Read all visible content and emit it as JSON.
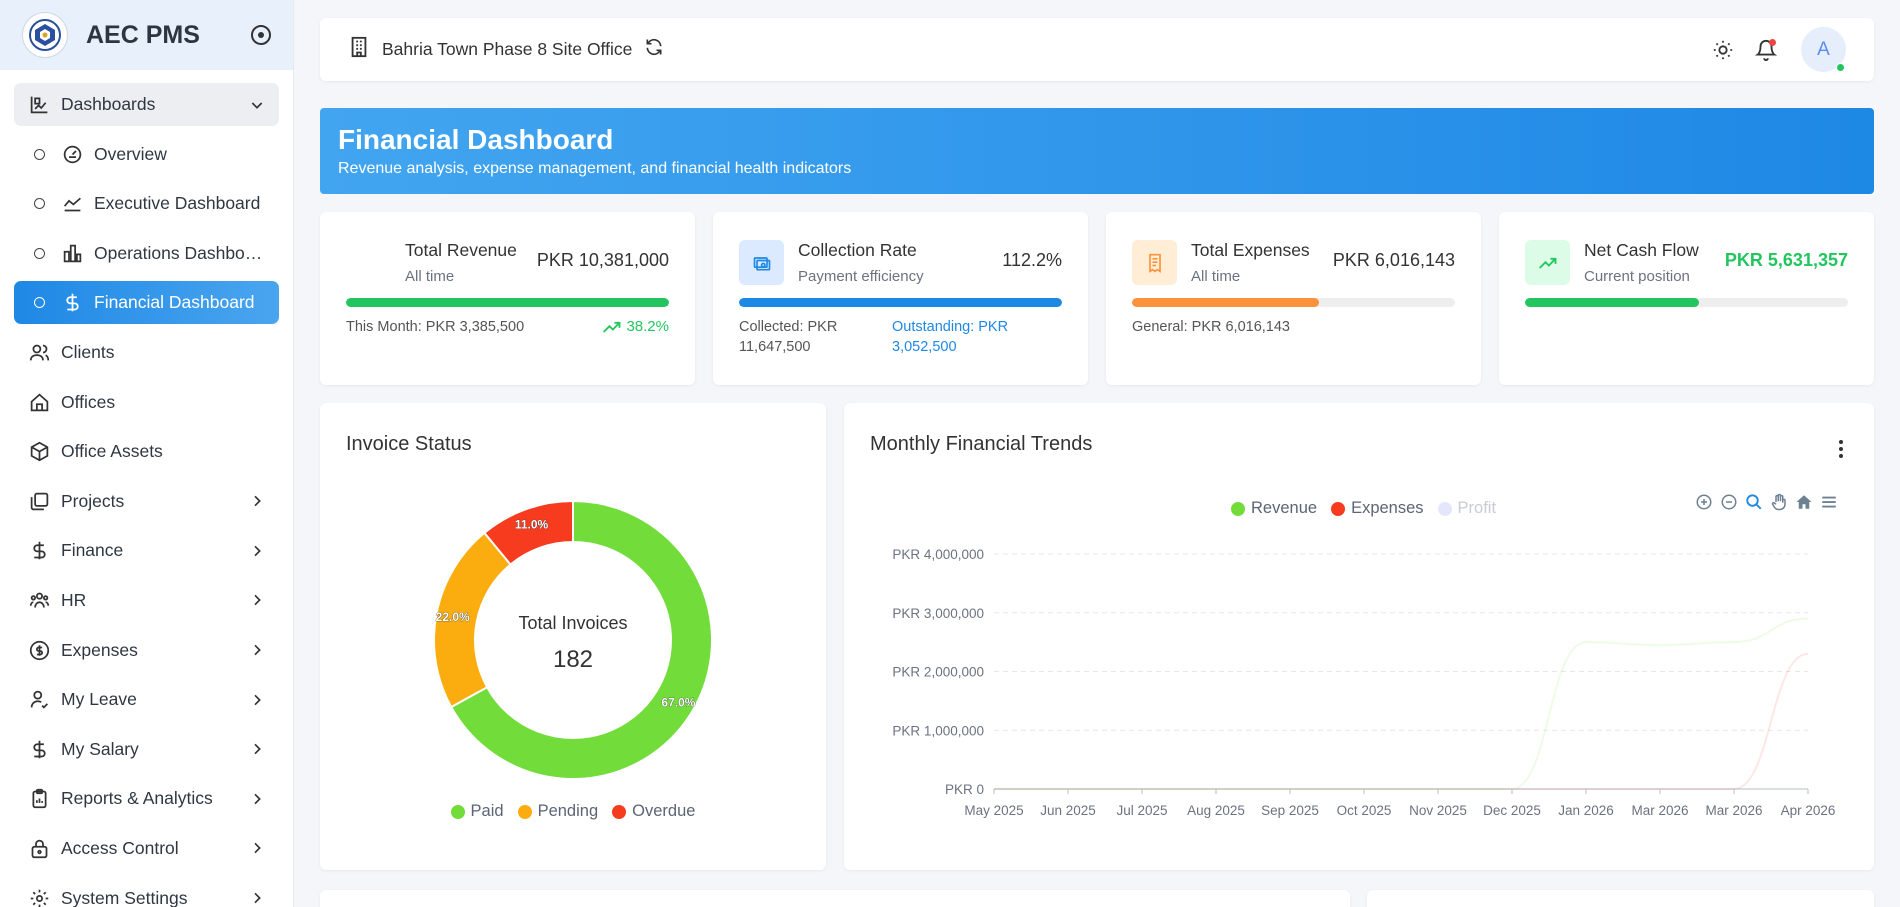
{
  "brand": {
    "name": "AEC PMS"
  },
  "sidebar": {
    "dashboards": {
      "label": "Dashboards"
    },
    "sub_items": [
      {
        "label": "Overview",
        "icon": "gauge-icon"
      },
      {
        "label": "Executive Dashboard",
        "icon": "line-chart-icon"
      },
      {
        "label": "Operations Dashboa...",
        "icon": "bar-chart-icon"
      },
      {
        "label": "Financial Dashboard",
        "icon": "dollar-icon",
        "active": true
      }
    ],
    "items": [
      {
        "label": "Clients",
        "icon": "users-icon"
      },
      {
        "label": "Offices",
        "icon": "home-icon"
      },
      {
        "label": "Office Assets",
        "icon": "box-icon"
      },
      {
        "label": "Projects",
        "icon": "folders-icon"
      },
      {
        "label": "Finance",
        "icon": "dollar-icon"
      },
      {
        "label": "HR",
        "icon": "team-icon"
      },
      {
        "label": "Expenses",
        "icon": "coin-icon"
      },
      {
        "label": "My Leave",
        "icon": "user-check-icon"
      },
      {
        "label": "My Salary",
        "icon": "dollar-icon"
      },
      {
        "label": "Reports & Analytics",
        "icon": "clipboard-icon"
      },
      {
        "label": "Access Control",
        "icon": "lock-icon"
      },
      {
        "label": "System Settings",
        "icon": "gear-icon"
      }
    ]
  },
  "topbar": {
    "office": "Bahria Town Phase 8 Site Office",
    "avatar_initial": "A"
  },
  "banner": {
    "title": "Financial Dashboard",
    "subtitle": "Revenue analysis, expense management, and financial health indicators"
  },
  "stats": {
    "revenue": {
      "title": "Total Revenue",
      "sub": "All time",
      "value": "PKR 10,381,000",
      "progress": 1.0,
      "foot_left": "This Month: PKR 3,385,500",
      "foot_right": "38.2%",
      "color": "#22c55e"
    },
    "collection": {
      "title": "Collection Rate",
      "sub": "Payment efficiency",
      "value": "112.2%",
      "progress": 1.0,
      "foot_left": "Collected: PKR 11,647,500",
      "foot_right": "Outstanding: PKR 3,052,500",
      "color": "#1e88e5"
    },
    "expenses": {
      "title": "Total Expenses",
      "sub": "All time",
      "value": "PKR 6,016,143",
      "progress": 0.58,
      "foot_left": "General: PKR 6,016,143",
      "color": "#fb923c"
    },
    "cashflow": {
      "title": "Net Cash Flow",
      "sub": "Current position",
      "value": "PKR 5,631,357",
      "progress": 0.54,
      "color": "#22c55e"
    }
  },
  "invoice": {
    "title": "Invoice Status",
    "center_label": "Total Invoices",
    "center_value": "182",
    "legend": [
      "Paid",
      "Pending",
      "Overdue"
    ]
  },
  "trends": {
    "title": "Monthly Financial Trends",
    "legend": [
      "Revenue",
      "Expenses",
      "Profit"
    ]
  },
  "chart_data": [
    {
      "type": "pie",
      "title": "Invoice Status",
      "categories": [
        "Paid",
        "Pending",
        "Overdue"
      ],
      "values": [
        67.0,
        22.0,
        11.0
      ],
      "labels": [
        "67.0%",
        "22.0%",
        "11.0%"
      ],
      "colors": [
        "#72dc3b",
        "#fbad0f",
        "#f63b1f"
      ],
      "legend": "bottom"
    },
    {
      "type": "line",
      "title": "Monthly Financial Trends",
      "x": [
        "May 2025",
        "Jun 2025",
        "Jul 2025",
        "Aug 2025",
        "Sep 2025",
        "Oct 2025",
        "Nov 2025",
        "Dec 2025",
        "Jan 2026",
        "Mar 2026",
        "Mar 2026",
        "Apr 2026"
      ],
      "y_ticks": [
        "PKR 0",
        "PKR 1,000,000",
        "PKR 2,000,000",
        "PKR 3,000,000",
        "PKR 4,000,000"
      ],
      "ylim": [
        0,
        4000000
      ],
      "series": [
        {
          "name": "Revenue",
          "color": "#72dc3b",
          "values": [
            0,
            0,
            0,
            0,
            0,
            0,
            0,
            0,
            2500000,
            2450000,
            2500000,
            2900000
          ]
        },
        {
          "name": "Expenses",
          "color": "#f63b1f",
          "values": [
            0,
            0,
            0,
            0,
            0,
            0,
            0,
            0,
            0,
            0,
            0,
            2300000
          ]
        },
        {
          "name": "Profit",
          "color": "#c9cdf6",
          "values": [
            0,
            0,
            0,
            0,
            0,
            0,
            0,
            0,
            0,
            0,
            0,
            0
          ],
          "hidden": true
        }
      ],
      "grid": true,
      "legend": "top"
    }
  ]
}
